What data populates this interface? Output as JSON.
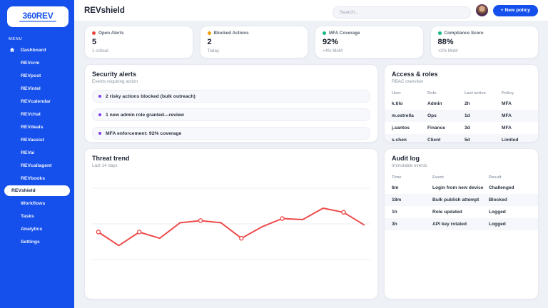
{
  "colors": {
    "accent": "#1650ec",
    "page_bg": "#eef1f6",
    "alert_red": "#ef4444",
    "warn_orange": "#f59e0b",
    "ok_green": "#10b981",
    "purple_dot": "#7c3aed",
    "chart_line": "#ee4b4b"
  },
  "sidebar": {
    "logo": "360REV",
    "menu_label": "MENU",
    "items": [
      {
        "label": "Dashboard",
        "icon": "home",
        "active": false
      },
      {
        "label": "REVcrm",
        "active": false
      },
      {
        "label": "REVpost",
        "active": false
      },
      {
        "label": "REVintel",
        "active": false
      },
      {
        "label": "REVcalendar",
        "active": false
      },
      {
        "label": "REVchat",
        "active": false
      },
      {
        "label": "REVdeals",
        "active": false
      },
      {
        "label": "REVassist",
        "active": false
      },
      {
        "label": "REVai",
        "active": false
      },
      {
        "label": "REVcallagent",
        "active": false
      },
      {
        "label": "REVbooks",
        "active": false
      },
      {
        "label": "REVshield",
        "active": true
      },
      {
        "label": "Workflows",
        "active": false
      },
      {
        "label": "Tasks",
        "active": false
      },
      {
        "label": "Analytics",
        "active": false
      },
      {
        "label": "Settings",
        "active": false
      }
    ]
  },
  "header": {
    "title": "REVshield",
    "search_placeholder": "Search...",
    "new_policy_label": "+ New policy"
  },
  "stats": [
    {
      "label": "Open Alerts",
      "value": "5",
      "sub": "1 critical",
      "dot": "#ef4444"
    },
    {
      "label": "Blocked Actions",
      "value": "2",
      "sub": "Today",
      "dot": "#f59e0b"
    },
    {
      "label": "MFA Coverage",
      "value": "92%",
      "sub": "+4% MoM",
      "dot": "#10b981"
    },
    {
      "label": "Compliance Score",
      "value": "88%",
      "sub": "+2% MoM",
      "dot": "#10b981"
    }
  ],
  "security_alerts": {
    "title": "Security alerts",
    "subtitle": "Events requiring action",
    "items": [
      "2 risky actions blocked (bulk outreach)",
      "1 new admin role granted—review",
      "MFA enforcement: 92% coverage"
    ]
  },
  "access_roles": {
    "title": "Access & roles",
    "subtitle": "RBAC overview",
    "columns": [
      "User",
      "Role",
      "Last active",
      "Policy"
    ],
    "rows": [
      [
        "k.tilo",
        "Admin",
        "2h",
        "MFA"
      ],
      [
        "m.estrella",
        "Ops",
        "1d",
        "MFA"
      ],
      [
        "j.santos",
        "Finance",
        "3d",
        "MFA"
      ],
      [
        "s.chen",
        "Client",
        "5d",
        "Limited"
      ]
    ]
  },
  "threat_trend": {
    "title": "Threat trend",
    "subtitle": "Last 14 days"
  },
  "chart_data": {
    "type": "line",
    "title": "Threat trend",
    "subtitle": "Last 14 days",
    "x": [
      1,
      2,
      3,
      4,
      5,
      6,
      7,
      8,
      9,
      10,
      11,
      12,
      13,
      14
    ],
    "values": [
      54,
      41,
      54,
      48,
      63,
      65,
      63,
      48,
      59,
      67,
      66,
      77,
      73,
      61
    ],
    "marker_indices": [
      0,
      2,
      5,
      7,
      9,
      12
    ],
    "line_color": "#ee4b4b",
    "marker_style": "open-circle",
    "ylim": [
      0,
      110
    ],
    "grid": true,
    "gridlines": 3,
    "xlabel": "",
    "ylabel": "",
    "legend": "none"
  },
  "audit_log": {
    "title": "Audit log",
    "subtitle": "Immutable events",
    "columns": [
      "Time",
      "Event",
      "Result"
    ],
    "rows": [
      [
        "6m",
        "Login from new device",
        "Challenged"
      ],
      [
        "18m",
        "Bulk publish attempt",
        "Blocked"
      ],
      [
        "1h",
        "Role updated",
        "Logged"
      ],
      [
        "3h",
        "API key rotated",
        "Logged"
      ]
    ]
  }
}
